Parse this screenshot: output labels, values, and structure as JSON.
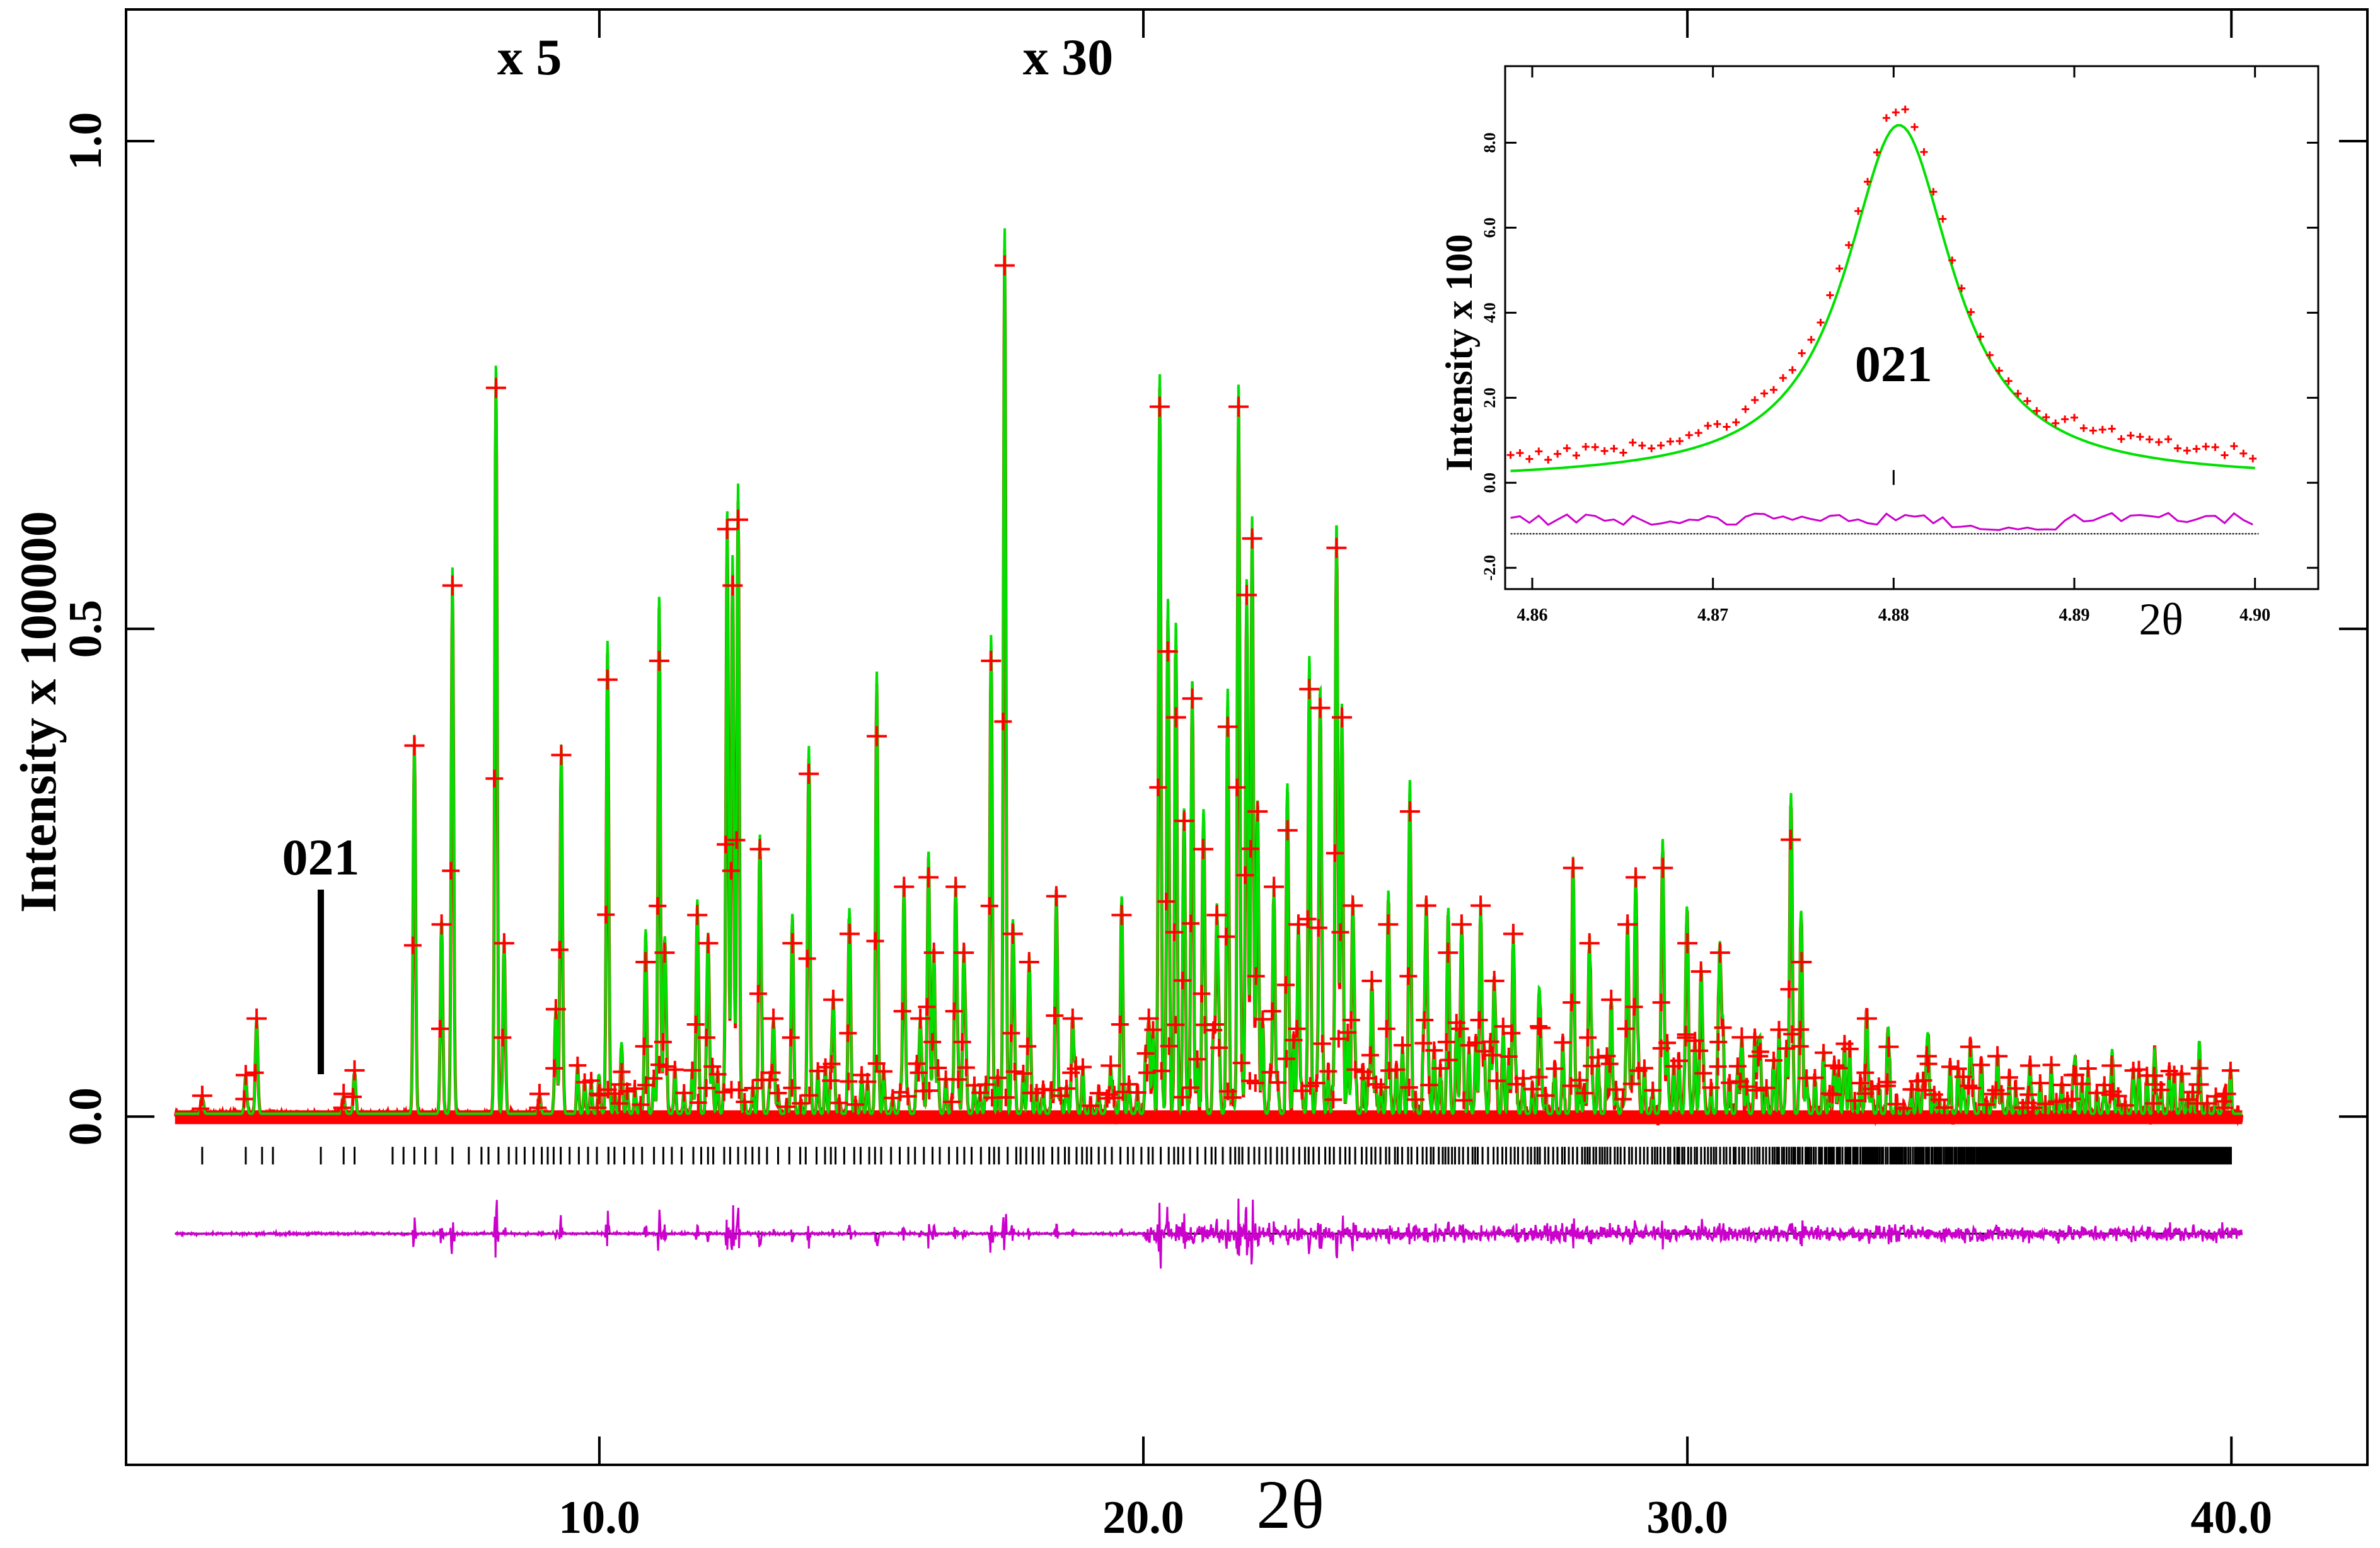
{
  "chart_data": [
    {
      "type": "line",
      "title": "",
      "xlabel": "2θ",
      "ylabel": "Intensity x 100000",
      "xlim": [
        1.3,
        42.5
      ],
      "ylim": [
        -0.357,
        1.135
      ],
      "grid": false,
      "x_ticks": [
        10.0,
        20.0,
        30.0,
        40.0
      ],
      "x_tick_labels": [
        "10.0",
        "20.0",
        "30.0",
        "40.0"
      ],
      "y_ticks": [
        0.0,
        0.5,
        1.0
      ],
      "y_tick_labels": [
        "0.0",
        "0.5",
        "1.0"
      ],
      "scale_annotations": [
        {
          "x": 8.6,
          "text": "x 5"
        },
        {
          "x": 18.5,
          "text": "x 30"
        }
      ],
      "reflection_marker": {
        "label": "021",
        "x": 4.88
      },
      "series": [
        {
          "name": "observed",
          "style": "red-plus",
          "color": "#ff0000"
        },
        {
          "name": "calculated",
          "style": "line",
          "color": "#00e000"
        },
        {
          "name": "reflection-ticks",
          "style": "tick-marks",
          "color": "#000000"
        },
        {
          "name": "difference",
          "style": "line",
          "color": "#cc00cc"
        }
      ],
      "series_data": {
        "baseline": 0.003,
        "peaks": [
          [
            2.7,
            0.018
          ],
          [
            3.5,
            0.04
          ],
          [
            3.7,
            0.1
          ],
          [
            5.3,
            0.02
          ],
          [
            5.5,
            0.045
          ],
          [
            6.6,
            0.39
          ],
          [
            7.1,
            0.2
          ],
          [
            7.3,
            0.56
          ],
          [
            8.1,
            0.77
          ],
          [
            8.25,
            0.18
          ],
          [
            8.9,
            0.02
          ],
          [
            9.2,
            0.11
          ],
          [
            9.3,
            0.38
          ],
          [
            10.0,
            0.02
          ],
          [
            10.15,
            0.46
          ],
          [
            10.4,
            0.03
          ],
          [
            10.85,
            0.16
          ],
          [
            11.1,
            0.48
          ],
          [
            11.2,
            0.17
          ],
          [
            11.8,
            0.21
          ],
          [
            12.0,
            0.18
          ],
          [
            12.35,
            0.62
          ],
          [
            12.45,
            0.56
          ],
          [
            12.55,
            0.63
          ],
          [
            12.95,
            0.28
          ],
          [
            13.2,
            0.1
          ],
          [
            13.55,
            0.18
          ],
          [
            13.85,
            0.36
          ],
          [
            14.3,
            0.12
          ],
          [
            14.6,
            0.19
          ],
          [
            15.1,
            0.4
          ],
          [
            15.6,
            0.24
          ],
          [
            15.9,
            0.1
          ],
          [
            16.05,
            0.25
          ],
          [
            16.15,
            0.17
          ],
          [
            16.55,
            0.24
          ],
          [
            16.7,
            0.17
          ],
          [
            17.2,
            0.48
          ],
          [
            17.45,
            0.9
          ],
          [
            17.6,
            0.19
          ],
          [
            17.9,
            0.16
          ],
          [
            18.4,
            0.23
          ],
          [
            18.7,
            0.1
          ],
          [
            19.4,
            0.05
          ],
          [
            19.6,
            0.21
          ],
          [
            20.1,
            0.1
          ],
          [
            20.3,
            0.75
          ],
          [
            20.45,
            0.49
          ],
          [
            20.6,
            0.42
          ],
          [
            20.75,
            0.31
          ],
          [
            20.9,
            0.44
          ],
          [
            21.1,
            0.28
          ],
          [
            21.35,
            0.21
          ],
          [
            21.55,
            0.41
          ],
          [
            21.75,
            0.75
          ],
          [
            21.9,
            0.55
          ],
          [
            22.0,
            0.61
          ],
          [
            22.1,
            0.32
          ],
          [
            22.4,
            0.24
          ],
          [
            22.65,
            0.3
          ],
          [
            22.85,
            0.2
          ],
          [
            23.05,
            0.45
          ],
          [
            23.25,
            0.43
          ],
          [
            23.55,
            0.6
          ],
          [
            23.65,
            0.42
          ],
          [
            23.85,
            0.22
          ],
          [
            24.2,
            0.14
          ],
          [
            24.5,
            0.2
          ],
          [
            24.9,
            0.32
          ],
          [
            25.2,
            0.22
          ],
          [
            25.6,
            0.17
          ],
          [
            25.85,
            0.2
          ],
          [
            26.2,
            0.22
          ],
          [
            26.45,
            0.14
          ],
          [
            26.8,
            0.19
          ],
          [
            27.3,
            0.09
          ],
          [
            27.9,
            0.26
          ],
          [
            28.2,
            0.18
          ],
          [
            28.6,
            0.12
          ],
          [
            28.9,
            0.2
          ],
          [
            29.05,
            0.25
          ],
          [
            29.55,
            0.26
          ],
          [
            30.0,
            0.18
          ],
          [
            30.25,
            0.15
          ],
          [
            30.6,
            0.17
          ],
          [
            31.0,
            0.08
          ],
          [
            31.3,
            0.06
          ],
          [
            31.9,
            0.29
          ],
          [
            32.1,
            0.16
          ],
          [
            32.7,
            0.05
          ],
          [
            33.3,
            0.1
          ],
          [
            33.7,
            0.07
          ],
          [
            34.4,
            0.06
          ],
          [
            35.2,
            0.07
          ],
          [
            35.7,
            0.06
          ],
          [
            36.3,
            0.05
          ],
          [
            37.1,
            0.04
          ],
          [
            37.8,
            0.05
          ],
          [
            38.6,
            0.03
          ],
          [
            39.4,
            0.03
          ],
          [
            39.9,
            0.02
          ]
        ],
        "difference_offset": -0.12
      }
    },
    {
      "type": "scatter",
      "title": "",
      "xlabel": "2θ",
      "ylabel": "Intensity x 100",
      "xlim": [
        4.8585,
        4.9035
      ],
      "ylim": [
        -2.5,
        9.8
      ],
      "x_ticks": [
        4.86,
        4.87,
        4.88,
        4.89,
        4.9
      ],
      "x_tick_labels": [
        "4.86",
        "4.87",
        "4.88",
        "4.89",
        "4.90"
      ],
      "y_ticks": [
        -2.0,
        0.0,
        2.0,
        4.0,
        6.0,
        8.0
      ],
      "y_tick_labels": [
        "-2.0",
        "0.0",
        "2.0",
        "4.0",
        "6.0",
        "8.0"
      ],
      "peak_label": "021",
      "series": [
        {
          "name": "observed",
          "style": "red-plus",
          "color": "#ff0000"
        },
        {
          "name": "calculated",
          "style": "line",
          "color": "#00e000"
        },
        {
          "name": "difference",
          "style": "line",
          "color": "#cc00cc"
        }
      ],
      "calc_model": {
        "center": 4.8803,
        "amplitude": 8.35,
        "width": 0.0036,
        "baseline_start": 0.05,
        "baseline_end": 0.08
      },
      "observed_offset_noise": 0.35,
      "difference_offset": -1.2,
      "reflection_x": 4.88
    }
  ]
}
